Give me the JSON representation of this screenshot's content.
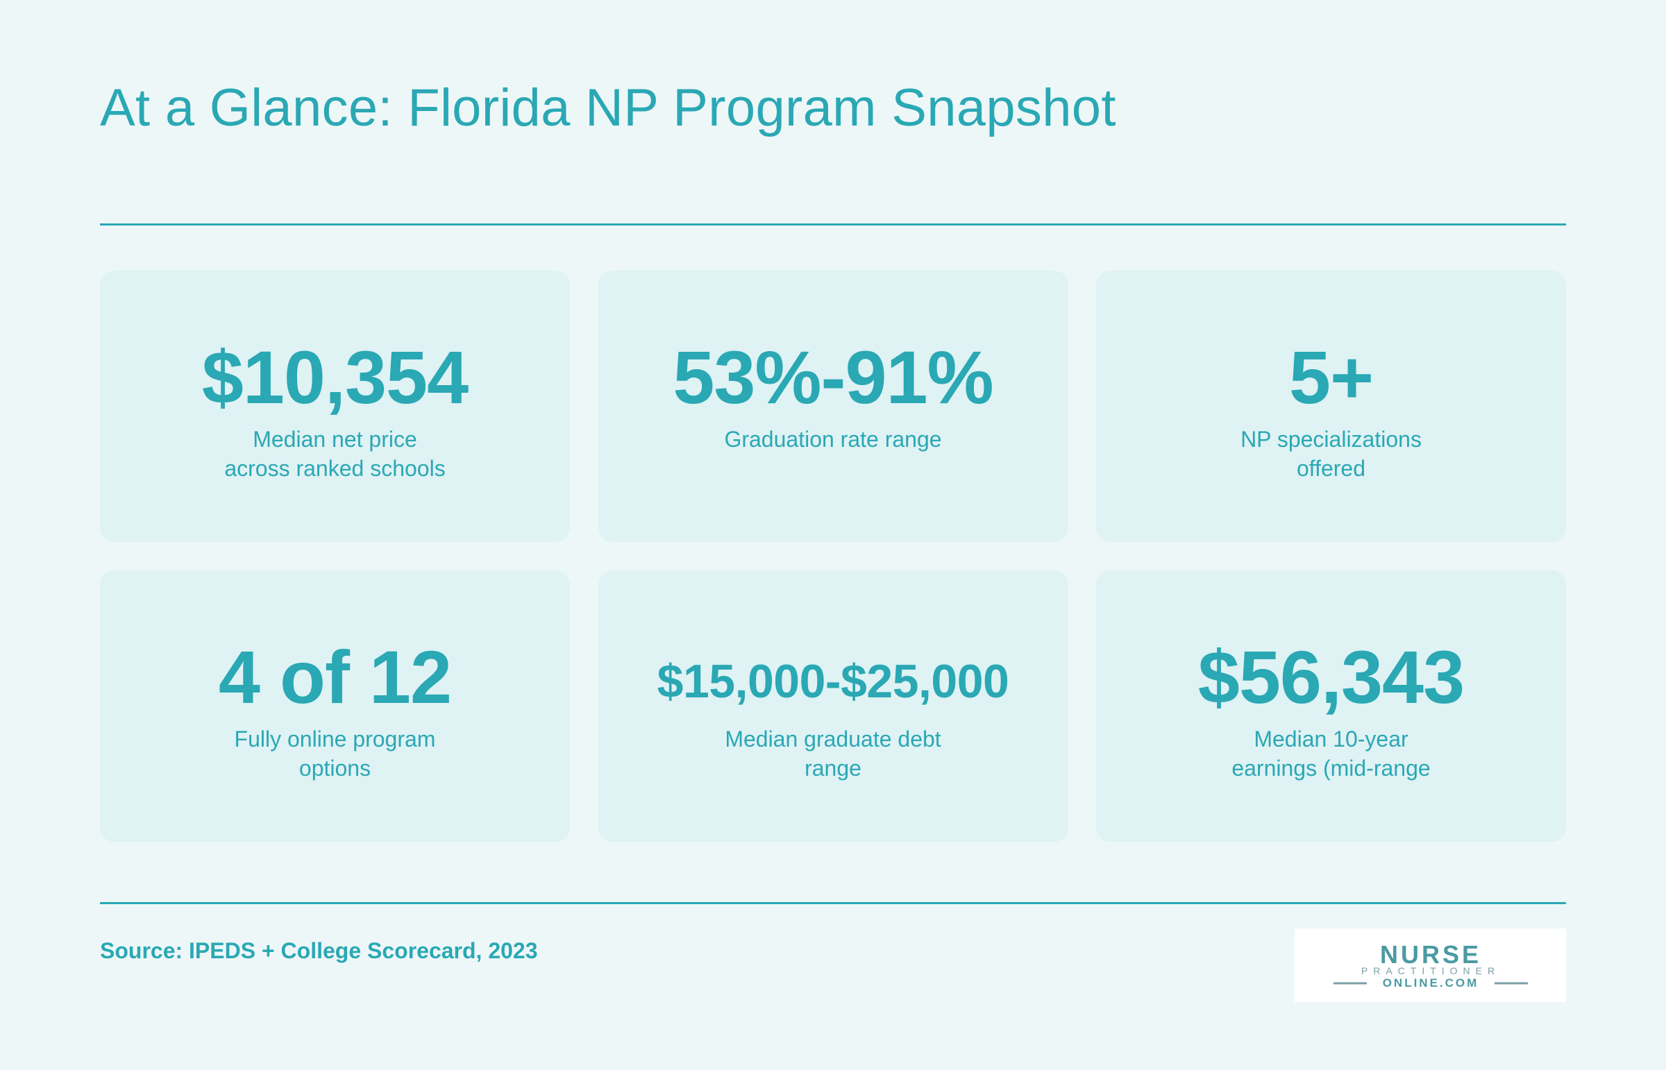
{
  "title": "At a Glance: Florida NP Program Snapshot",
  "stats": [
    {
      "value": "$10,354",
      "label_lines": [
        "Median net price",
        "across ranked schools"
      ]
    },
    {
      "value": "53%-91%",
      "label_lines": [
        "Graduation rate range",
        ""
      ]
    },
    {
      "value": "5+",
      "label_lines": [
        "NP specializations",
        "offered"
      ]
    },
    {
      "value": "4 of 12",
      "label_lines": [
        "Fully online program",
        "options"
      ]
    },
    {
      "value": "$15,000-$25,000",
      "label_lines": [
        "Median graduate debt",
        "range"
      ]
    },
    {
      "value": "$56,343",
      "label_lines": [
        "Median 10-year",
        "earnings (mid-range"
      ]
    }
  ],
  "source": "Source: IPEDS + College Scorecard, 2023",
  "logo": {
    "line1": "NURSE",
    "line2": "PRACTITIONER",
    "line3": "ONLINE.COM"
  },
  "colors": {
    "accent": "#2aa8b4",
    "background": "#eef7f8",
    "card": "#dff2f4",
    "logo_text": "#4a9aa3"
  }
}
